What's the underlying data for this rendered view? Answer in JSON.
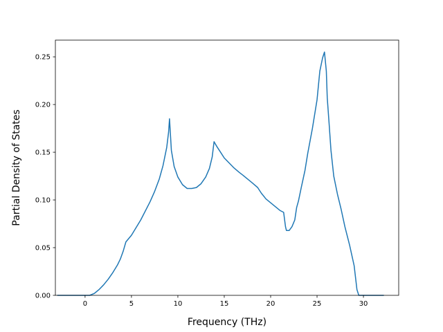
{
  "chart_data": {
    "type": "line",
    "title": "",
    "xlabel": "Frequency (THz)",
    "ylabel": "Partial Density of States",
    "xlim": [
      -3.2,
      33.8
    ],
    "ylim": [
      0.0,
      0.2675
    ],
    "xticks": [
      0,
      5,
      10,
      15,
      20,
      25,
      30
    ],
    "xtick_labels": [
      "0",
      "5",
      "10",
      "15",
      "20",
      "25",
      "30"
    ],
    "yticks": [
      0.0,
      0.05,
      0.1,
      0.15,
      0.2,
      0.25
    ],
    "ytick_labels": [
      "0.00",
      "0.05",
      "0.10",
      "0.15",
      "0.20",
      "0.25"
    ],
    "grid": false,
    "legend": "none",
    "series": [
      {
        "color": "#1f77b4",
        "x": [
          -3.0,
          -1.0,
          0.0,
          0.5,
          1.0,
          1.5,
          2.0,
          2.5,
          3.0,
          3.5,
          3.8,
          4.1,
          4.4,
          5.0,
          6.0,
          7.0,
          7.5,
          8.0,
          8.4,
          8.8,
          9.0,
          9.1,
          9.3,
          9.6,
          10.0,
          10.5,
          11.0,
          11.5,
          12.0,
          12.5,
          13.0,
          13.4,
          13.7,
          13.9,
          14.2,
          14.6,
          15.0,
          15.6,
          16.0,
          16.6,
          17.0,
          17.5,
          18.0,
          18.6,
          19.0,
          19.5,
          20.0,
          20.5,
          21.0,
          21.4,
          21.6,
          21.7,
          21.8,
          22.0,
          22.3,
          22.6,
          22.8,
          23.0,
          23.3,
          23.7,
          24.0,
          24.5,
          25.0,
          25.3,
          25.6,
          25.8,
          26.0,
          26.1,
          26.3,
          26.5,
          26.8,
          27.2,
          27.6,
          28.0,
          28.5,
          29.0,
          29.3,
          29.5,
          30.0,
          31.0,
          32.2
        ],
        "y": [
          0.0,
          0.0,
          0.0,
          0.0,
          0.002,
          0.006,
          0.011,
          0.017,
          0.024,
          0.032,
          0.038,
          0.046,
          0.056,
          0.063,
          0.079,
          0.098,
          0.109,
          0.122,
          0.136,
          0.155,
          0.171,
          0.185,
          0.152,
          0.135,
          0.124,
          0.116,
          0.112,
          0.112,
          0.113,
          0.117,
          0.124,
          0.133,
          0.145,
          0.161,
          0.156,
          0.15,
          0.144,
          0.138,
          0.134,
          0.129,
          0.126,
          0.122,
          0.118,
          0.113,
          0.107,
          0.101,
          0.097,
          0.093,
          0.089,
          0.087,
          0.072,
          0.068,
          0.068,
          0.068,
          0.072,
          0.079,
          0.092,
          0.099,
          0.113,
          0.131,
          0.149,
          0.175,
          0.205,
          0.235,
          0.249,
          0.255,
          0.235,
          0.207,
          0.18,
          0.152,
          0.125,
          0.106,
          0.09,
          0.072,
          0.053,
          0.031,
          0.006,
          0.0,
          0.0,
          0.0,
          0.0
        ]
      }
    ]
  }
}
